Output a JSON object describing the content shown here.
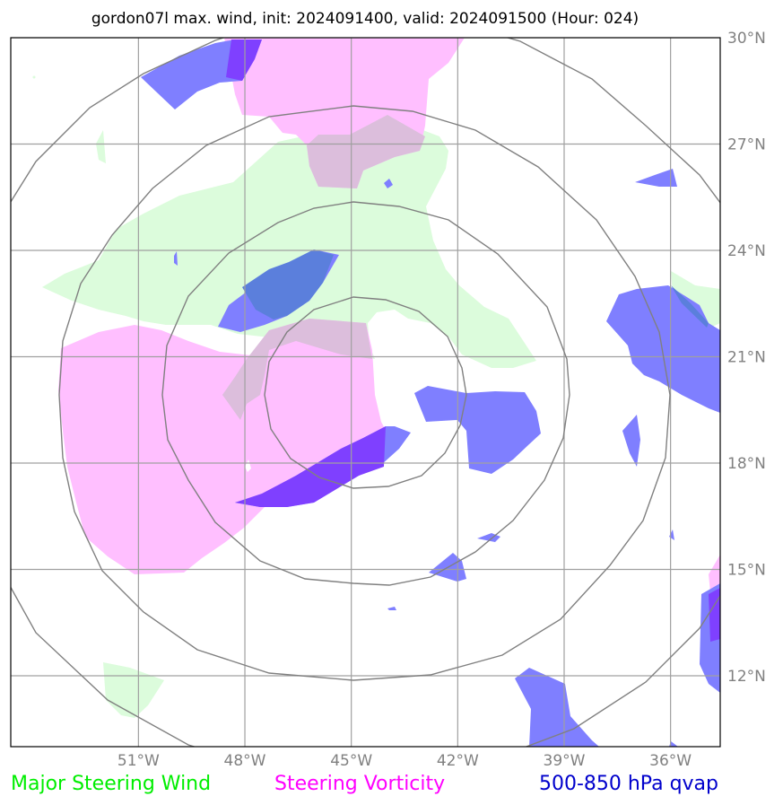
{
  "title": "gordon07l max. wind, init: 2024091400, valid: 2024091500 (Hour: 024)",
  "map": {
    "lon_range": [
      -54.6,
      -34.6
    ],
    "lat_range": [
      10,
      30
    ],
    "x_ticks": [
      {
        "value": -51,
        "label": "51°W"
      },
      {
        "value": -48,
        "label": "48°W"
      },
      {
        "value": -45,
        "label": "45°W"
      },
      {
        "value": -42,
        "label": "42°W"
      },
      {
        "value": -39,
        "label": "39°W"
      },
      {
        "value": -36,
        "label": "36°W"
      }
    ],
    "y_ticks": [
      {
        "value": 30,
        "label": "30°N"
      },
      {
        "value": 27,
        "label": "27°N"
      },
      {
        "value": 24,
        "label": "24°N"
      },
      {
        "value": 21,
        "label": "21°N"
      },
      {
        "value": 18,
        "label": "18°N"
      },
      {
        "value": 15,
        "label": "15°N"
      },
      {
        "value": 12,
        "label": "12°N"
      }
    ],
    "grid": true
  },
  "legend": [
    {
      "label": "Major Steering Wind",
      "color": "#00ee00"
    },
    {
      "label": "Steering Vorticity",
      "color": "#ff00ff"
    },
    {
      "label": "500-850 hPa qvap",
      "color": "#0000cc"
    }
  ],
  "colors": {
    "steering_wind_fill": "#dcfcdc",
    "vorticity_fill": "#ffbfff",
    "qvap_fill": "#7f7fff",
    "overlap_wind_vorticity": "#dcbedc",
    "overlap_vorticity_qvap": "#7f40ff",
    "overlap_wind_qvap": "#5b7fdc"
  }
}
